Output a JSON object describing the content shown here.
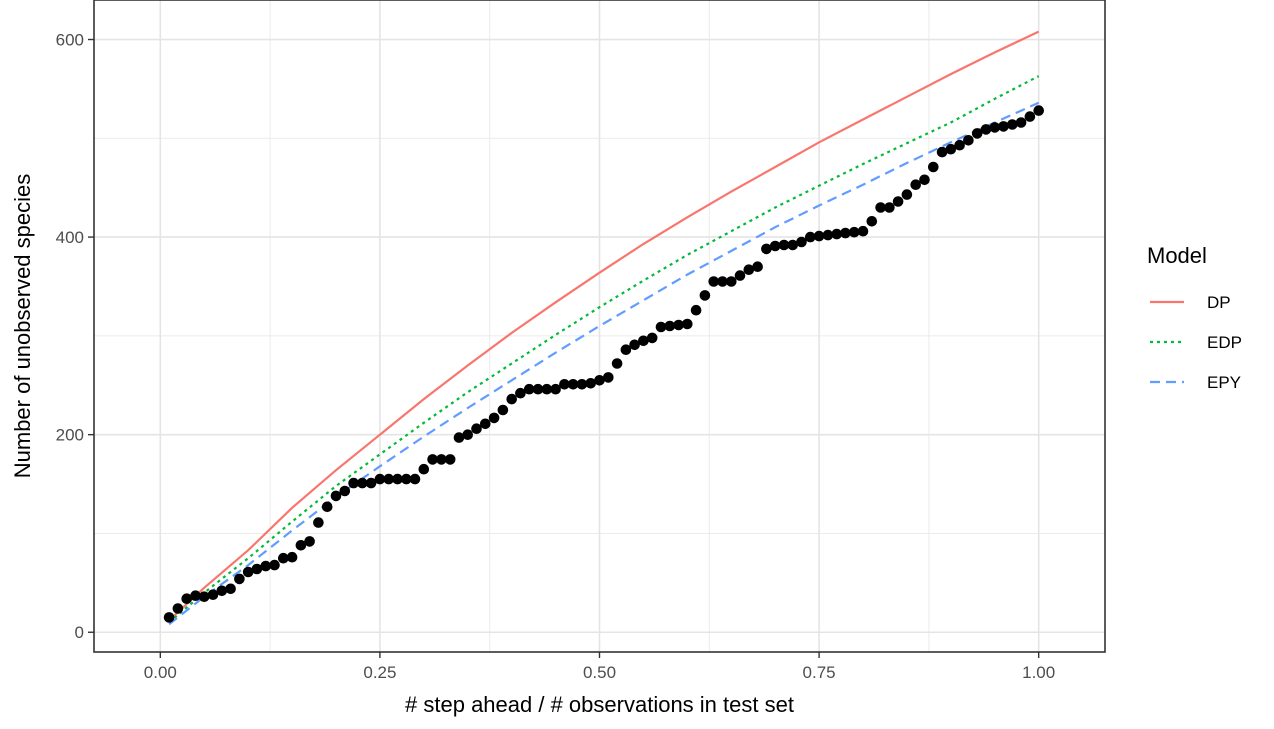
{
  "chart_data": {
    "type": "line",
    "xlabel": "# step ahead / # observations in test set",
    "ylabel": "Number of unobserved species",
    "xlim": [
      -0.0755,
      1.0755
    ],
    "ylim": [
      -20,
      640
    ],
    "x_ticks": [
      0.0,
      0.25,
      0.5,
      0.75,
      1.0
    ],
    "x_tick_labels": [
      "0.00",
      "0.25",
      "0.50",
      "0.75",
      "1.00"
    ],
    "y_ticks": [
      0,
      200,
      400,
      600
    ],
    "y_tick_labels": [
      "0",
      "200",
      "400",
      "600"
    ],
    "grid": true,
    "legend": {
      "title": "Model",
      "position": "right",
      "entries": [
        {
          "label": "DP",
          "color": "#F8766D",
          "dash": "solid"
        },
        {
          "label": "EDP",
          "color": "#00BA38",
          "dash": "dotted"
        },
        {
          "label": "EPY",
          "color": "#619CFF",
          "dash": "dashed"
        }
      ]
    },
    "series": [
      {
        "name": "DP",
        "color": "#F8766D",
        "dash": "solid",
        "x": [
          0.01,
          0.05,
          0.1,
          0.15,
          0.2,
          0.25,
          0.3,
          0.35,
          0.4,
          0.45,
          0.5,
          0.55,
          0.6,
          0.65,
          0.7,
          0.75,
          0.8,
          0.85,
          0.9,
          0.95,
          1.0
        ],
        "y": [
          12,
          45,
          83,
          126,
          164,
          200,
          236,
          270,
          303,
          334,
          364,
          393,
          420,
          446,
          471,
          496,
          519,
          542,
          565,
          587,
          608
        ]
      },
      {
        "name": "EDP",
        "color": "#00BA38",
        "dash": "dotted",
        "x": [
          0.01,
          0.05,
          0.1,
          0.15,
          0.2,
          0.25,
          0.3,
          0.35,
          0.4,
          0.45,
          0.5,
          0.55,
          0.6,
          0.65,
          0.7,
          0.75,
          0.8,
          0.85,
          0.9,
          0.95,
          1.0
        ],
        "y": [
          10,
          40,
          75,
          112,
          148,
          180,
          212,
          243,
          272,
          301,
          329,
          356,
          382,
          406,
          430,
          452,
          474,
          495,
          516,
          540,
          563
        ]
      },
      {
        "name": "EPY",
        "color": "#619CFF",
        "dash": "dashed",
        "x": [
          0.01,
          0.05,
          0.1,
          0.15,
          0.2,
          0.25,
          0.3,
          0.35,
          0.4,
          0.45,
          0.5,
          0.55,
          0.6,
          0.65,
          0.7,
          0.75,
          0.8,
          0.85,
          0.9,
          0.95,
          1.0
        ],
        "y": [
          8,
          36,
          68,
          103,
          137,
          168,
          198,
          227,
          255,
          283,
          310,
          336,
          362,
          386,
          410,
          432,
          453,
          475,
          496,
          516,
          536
        ]
      }
    ],
    "observed": {
      "marker": "point",
      "color": "#000000",
      "x": [
        0.01,
        0.02,
        0.03,
        0.04,
        0.05,
        0.06,
        0.07,
        0.08,
        0.09,
        0.1,
        0.11,
        0.12,
        0.13,
        0.14,
        0.15,
        0.16,
        0.17,
        0.18,
        0.19,
        0.2,
        0.21,
        0.22,
        0.23,
        0.24,
        0.25,
        0.26,
        0.27,
        0.28,
        0.29,
        0.3,
        0.31,
        0.32,
        0.33,
        0.34,
        0.35,
        0.36,
        0.37,
        0.38,
        0.39,
        0.4,
        0.41,
        0.42,
        0.43,
        0.44,
        0.45,
        0.46,
        0.47,
        0.48,
        0.49,
        0.5,
        0.51,
        0.52,
        0.53,
        0.54,
        0.55,
        0.56,
        0.57,
        0.58,
        0.59,
        0.6,
        0.61,
        0.62,
        0.63,
        0.64,
        0.65,
        0.66,
        0.67,
        0.68,
        0.69,
        0.7,
        0.71,
        0.72,
        0.73,
        0.74,
        0.75,
        0.76,
        0.77,
        0.78,
        0.79,
        0.8,
        0.81,
        0.82,
        0.83,
        0.84,
        0.85,
        0.86,
        0.87,
        0.88,
        0.89,
        0.9,
        0.91,
        0.92,
        0.93,
        0.94,
        0.95,
        0.96,
        0.97,
        0.98,
        0.99,
        1.0
      ],
      "y": [
        15,
        24,
        34,
        37,
        36,
        38,
        42,
        44,
        54,
        61,
        64,
        67,
        68,
        75,
        76,
        88,
        92,
        111,
        127,
        138,
        143,
        151,
        151,
        151,
        155,
        155,
        155,
        155,
        155,
        165,
        175,
        175,
        175,
        197,
        200,
        206,
        211,
        217,
        225,
        236,
        242,
        246,
        246,
        246,
        246,
        251,
        251,
        251,
        252,
        255,
        258,
        272,
        286,
        291,
        295,
        298,
        309,
        310,
        311,
        312,
        326,
        341,
        355,
        355,
        355,
        361,
        367,
        370,
        388,
        391,
        392,
        392,
        395,
        400,
        401,
        402,
        403,
        404,
        405,
        406,
        416,
        430,
        430,
        436,
        443,
        453,
        458,
        471,
        486,
        489,
        493,
        498,
        505,
        509,
        511,
        512,
        514,
        516,
        522,
        528
      ]
    }
  }
}
